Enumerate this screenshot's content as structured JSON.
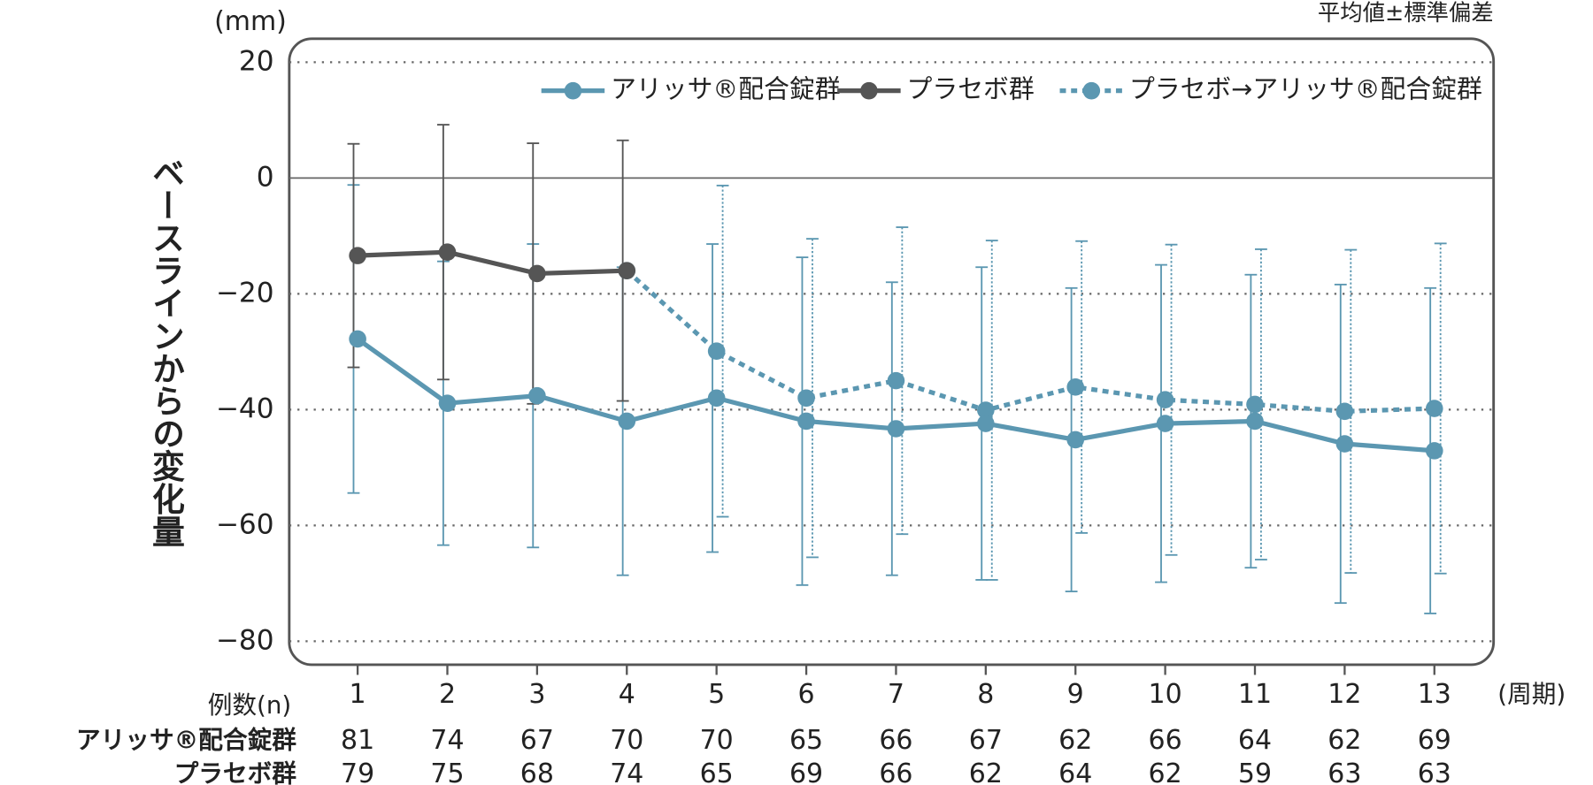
{
  "chart_data": {
    "type": "line",
    "y_unit": "(mm)",
    "note": "平均値±標準偏差",
    "ylabel": "ベースラインからの変化量",
    "x_unit": "(周期)",
    "categories": [
      "1",
      "2",
      "3",
      "4",
      "5",
      "6",
      "7",
      "8",
      "9",
      "10",
      "11",
      "12",
      "13"
    ],
    "ylim": [
      -80,
      20
    ],
    "yticks": [
      {
        "value": -80,
        "label": "−80"
      },
      {
        "value": -60,
        "label": "−60"
      },
      {
        "value": -40,
        "label": "−40"
      },
      {
        "value": -20,
        "label": "−20"
      },
      0,
      20
    ],
    "grid": true,
    "series": [
      {
        "name": "アリッサ®配合錠群",
        "color": "#5b97b1",
        "dash": false,
        "values": [
          -27.8,
          -38.9,
          -37.6,
          -42.0,
          -38.0,
          -42.0,
          -43.3,
          -42.4,
          -45.2,
          -42.4,
          -42.0,
          -45.9,
          -47.1
        ],
        "errors": [
          26.6,
          24.5,
          26.2,
          26.6,
          26.6,
          28.3,
          25.3,
          27.0,
          26.2,
          27.4,
          25.3,
          27.5,
          28.1
        ]
      },
      {
        "name": "プラセボ群",
        "color": "#555555",
        "dash": false,
        "values": [
          -13.4,
          -12.8,
          -16.5,
          -16.0,
          null,
          null,
          null,
          null,
          null,
          null,
          null,
          null,
          null
        ],
        "errors": [
          19.3,
          22.0,
          22.5,
          22.5,
          null,
          null,
          null,
          null,
          null,
          null,
          null,
          null,
          null
        ]
      },
      {
        "name": "プラセボ→アリッサ®配合錠群",
        "color": "#5b97b1",
        "dash": true,
        "values": [
          null,
          null,
          null,
          -16.0,
          -29.9,
          -38.0,
          -35.0,
          -40.1,
          -36.1,
          -38.3,
          -39.1,
          -40.3,
          -39.8
        ],
        "errors": [
          null,
          null,
          null,
          null,
          28.6,
          27.5,
          26.5,
          29.3,
          25.2,
          26.8,
          26.8,
          27.9,
          28.5
        ]
      }
    ],
    "table": {
      "header": "例数(n)",
      "rows": [
        {
          "label": "アリッサ®配合錠群",
          "values": [
            81,
            74,
            67,
            70,
            70,
            65,
            66,
            67,
            62,
            66,
            64,
            62,
            69
          ]
        },
        {
          "label": "プラセボ群",
          "values": [
            79,
            75,
            68,
            74,
            65,
            69,
            66,
            62,
            64,
            62,
            59,
            63,
            63
          ]
        }
      ]
    }
  }
}
